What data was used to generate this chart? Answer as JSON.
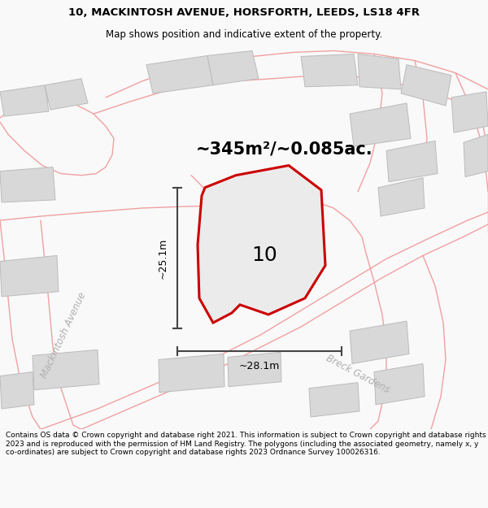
{
  "title_line1": "10, MACKINTOSH AVENUE, HORSFORTH, LEEDS, LS18 4FR",
  "title_line2": "Map shows position and indicative extent of the property.",
  "area_label": "~345m²/~0.085ac.",
  "property_number": "10",
  "dim_horizontal": "~28.1m",
  "dim_vertical": "~25.1m",
  "street_label1": "Mackintosh Avenue",
  "street_label2": "Breck Gardens",
  "footer_text": "Contains OS data © Crown copyright and database right 2021. This information is subject to Crown copyright and database rights 2023 and is reproduced with the permission of HM Land Registry. The polygons (including the associated geometry, namely x, y co-ordinates) are subject to Crown copyright and database rights 2023 Ordnance Survey 100026316.",
  "bg_color": "#f9f9f9",
  "map_bg": "#f5f3f3",
  "property_fill": "#ebebeb",
  "property_outline": "#cc0000",
  "building_fill": "#d8d8d8",
  "building_outline": "#bbbbbb",
  "road_color": "#f0a0a0",
  "dim_line_color": "#444444",
  "title_fontsize": 9.5,
  "subtitle_fontsize": 8.5,
  "area_fontsize": 15,
  "number_fontsize": 18,
  "dim_fontsize": 9,
  "street_fontsize": 8.5,
  "footer_fontsize": 6.5
}
